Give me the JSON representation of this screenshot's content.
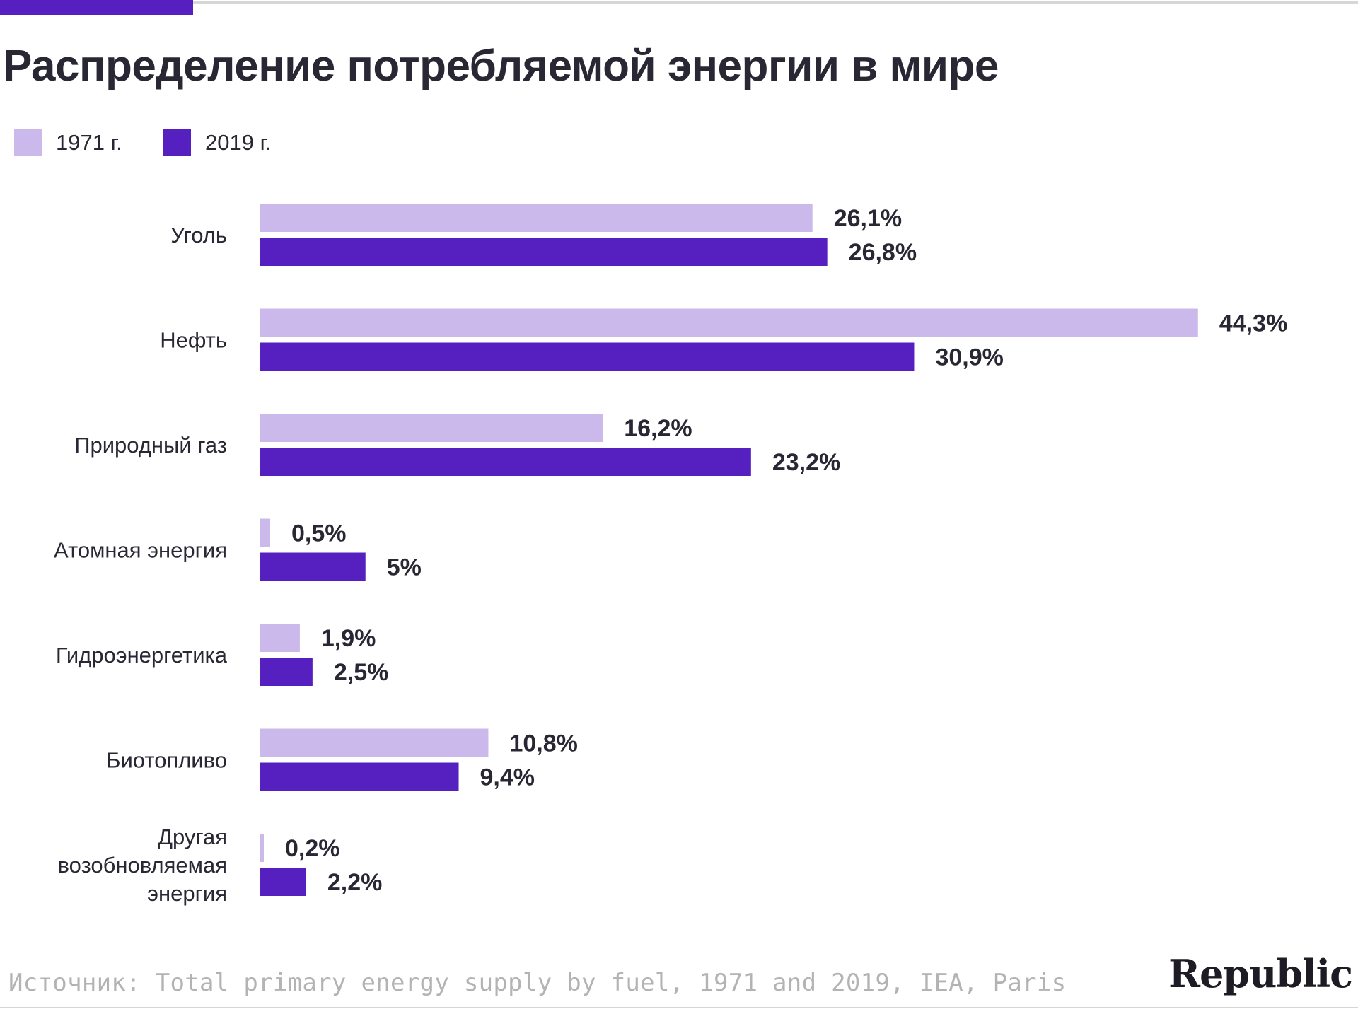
{
  "header": {
    "title": "Распределение потребляемой энергии в мире"
  },
  "legend": [
    {
      "label": "1971 г.",
      "color": "#cbb9ec"
    },
    {
      "label": "2019 г.",
      "color": "#5620c0"
    }
  ],
  "chart_data": {
    "type": "bar",
    "orientation": "horizontal",
    "title": "Распределение потребляемой энергии в мире",
    "categories": [
      [
        "Уголь"
      ],
      [
        "Нефть"
      ],
      [
        "Природный газ"
      ],
      [
        "Атомная энергия"
      ],
      [
        "Гидроэнергетика"
      ],
      [
        "Биотопливо"
      ],
      [
        "Другая",
        "возобновляемая",
        "энергия"
      ]
    ],
    "series": [
      {
        "name": "1971 г.",
        "color": "#cbb9ec",
        "values": [
          26.1,
          44.3,
          16.2,
          0.5,
          1.9,
          10.8,
          0.2
        ],
        "labels": [
          "26,1%",
          "44,3%",
          "16,2%",
          "0,5%",
          "1,9%",
          "10,8%",
          "0,2%"
        ]
      },
      {
        "name": "2019 г.",
        "color": "#5620c0",
        "values": [
          26.8,
          30.9,
          23.2,
          5,
          2.5,
          9.4,
          2.2
        ],
        "labels": [
          "26,8%",
          "30,9%",
          "23,2%",
          "5%",
          "2,5%",
          "9,4%",
          "2,2%"
        ]
      }
    ],
    "unit": "%",
    "grid": false,
    "legend_position": "top-left"
  },
  "footer": {
    "source": "Источник: Total primary energy supply by fuel, 1971 and 2019, IEA, Paris",
    "brand": "Republic"
  }
}
